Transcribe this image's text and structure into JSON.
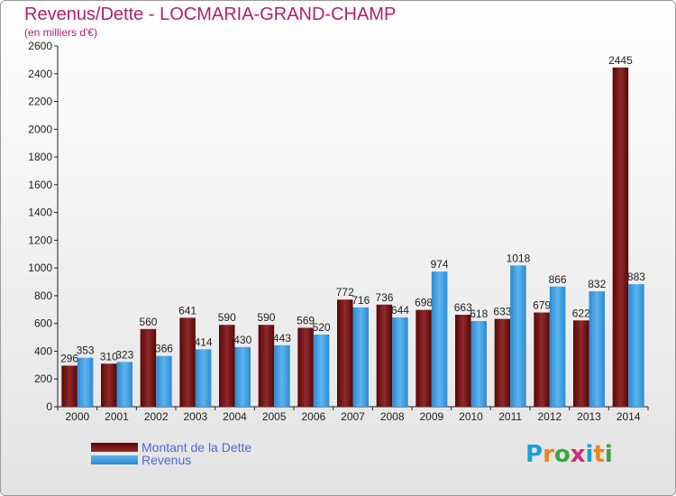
{
  "title": "Revenus/Dette - LOCMARIA-GRAND-CHAMP",
  "subtitle": "(en milliers d'€)",
  "brand": {
    "letters": [
      "P",
      "r",
      "o",
      "x",
      "i",
      "t",
      "i"
    ],
    "colors": [
      "#1aa0d8",
      "#e8871e",
      "#3aa640",
      "#d12a7a",
      "#1aa0d8",
      "#e8871e",
      "#3aa640"
    ]
  },
  "colors": {
    "dette": "#7a1518",
    "revenus": "#3a9ee0"
  },
  "chart_data": {
    "type": "bar",
    "categories": [
      "2000",
      "2001",
      "2002",
      "2003",
      "2004",
      "2005",
      "2006",
      "2007",
      "2008",
      "2009",
      "2010",
      "2011",
      "2012",
      "2013",
      "2014"
    ],
    "series": [
      {
        "name": "Montant de la Dette",
        "values": [
          296,
          310,
          560,
          641,
          590,
          590,
          569,
          772,
          736,
          698,
          663,
          633,
          679,
          622,
          2445
        ]
      },
      {
        "name": "Revenus",
        "values": [
          353,
          323,
          366,
          414,
          430,
          443,
          520,
          716,
          644,
          974,
          618,
          1018,
          866,
          832,
          883
        ]
      }
    ],
    "ylim": [
      0,
      2600
    ],
    "yticks": [
      0,
      200,
      400,
      600,
      800,
      1000,
      1200,
      1400,
      1600,
      1800,
      2000,
      2200,
      2400,
      2600
    ],
    "grid": false,
    "legend": "bottom-left"
  }
}
